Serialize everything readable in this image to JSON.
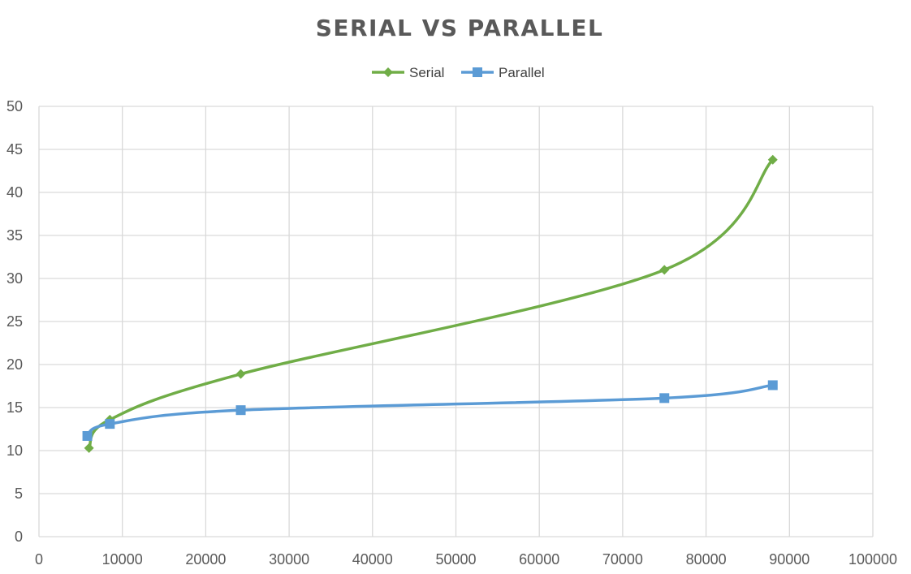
{
  "chart_data": {
    "type": "line",
    "title": "SERIAL VS PARALLEL",
    "xlabel": "",
    "ylabel": "",
    "xlim": [
      0,
      100000
    ],
    "ylim": [
      0,
      50
    ],
    "x_ticks": [
      0,
      10000,
      20000,
      30000,
      40000,
      50000,
      60000,
      70000,
      80000,
      90000,
      100000
    ],
    "y_ticks": [
      0,
      5,
      10,
      15,
      20,
      25,
      30,
      35,
      40,
      45,
      50
    ],
    "grid": true,
    "smooth": true,
    "legend_position": "top",
    "series": [
      {
        "name": "Serial",
        "color": "#70ad47",
        "marker": "diamond",
        "x": [
          6000,
          8500,
          24200,
          75000,
          88000
        ],
        "y": [
          10.3,
          13.6,
          18.9,
          31.0,
          43.8
        ]
      },
      {
        "name": "Parallel",
        "color": "#5b9bd5",
        "marker": "square",
        "x": [
          5800,
          8500,
          24200,
          75000,
          88000
        ],
        "y": [
          11.7,
          13.1,
          14.7,
          16.1,
          17.6
        ]
      }
    ]
  }
}
